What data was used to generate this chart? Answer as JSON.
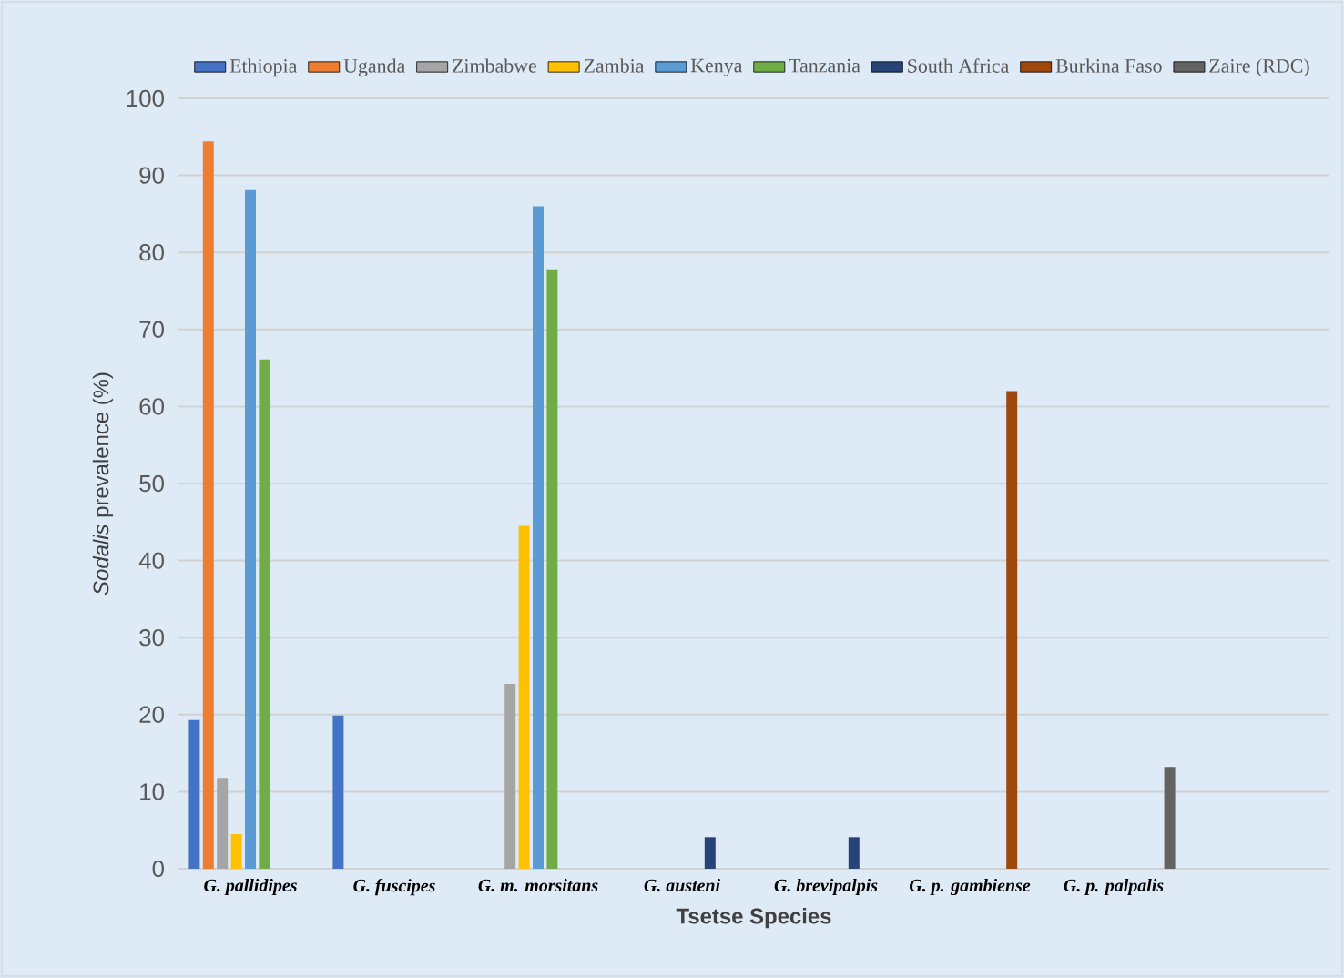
{
  "chart_data": {
    "type": "bar",
    "xlabel": "Tsetse Species",
    "ylabel": "*Sodalis* prevalence (%)",
    "categories": [
      "G. pallidipes",
      "G. fuscipes",
      "G. m. morsitans",
      "G. austeni",
      "G. brevipalpis",
      "G. p. gambiense",
      "G. p. palpalis",
      null
    ],
    "series": [
      {
        "name": "Ethiopia",
        "color": "#4472c4",
        "values": [
          19.3,
          19.9,
          null,
          null,
          null,
          null,
          null,
          null
        ]
      },
      {
        "name": "Uganda",
        "color": "#ed7d31",
        "values": [
          94.4,
          null,
          null,
          null,
          null,
          null,
          null,
          null
        ]
      },
      {
        "name": "Zimbabwe",
        "color": "#a5a5a5",
        "values": [
          11.8,
          null,
          24,
          null,
          null,
          null,
          null,
          null
        ]
      },
      {
        "name": "Zambia",
        "color": "#ffc000",
        "values": [
          4.5,
          null,
          44.5,
          null,
          null,
          null,
          null,
          null
        ]
      },
      {
        "name": "Kenya",
        "color": "#5b9bd5",
        "values": [
          88.1,
          null,
          86,
          null,
          null,
          null,
          null,
          null
        ]
      },
      {
        "name": "Tanzania",
        "color": "#70ad47",
        "values": [
          66.1,
          null,
          77.8,
          null,
          null,
          null,
          null,
          null
        ]
      },
      {
        "name": "South Africa",
        "color": "#264478",
        "values": [
          null,
          null,
          null,
          4.1,
          4.1,
          null,
          null,
          null
        ]
      },
      {
        "name": "Burkina Faso",
        "color": "#9e480e",
        "values": [
          null,
          null,
          null,
          null,
          null,
          62,
          null,
          null
        ]
      },
      {
        "name": "Zaire (RDC)",
        "color": "#636363",
        "values": [
          null,
          null,
          null,
          null,
          null,
          null,
          13.2,
          null
        ]
      }
    ],
    "ylim": [
      0,
      100
    ],
    "yticks": [
      0,
      10,
      20,
      30,
      40,
      50,
      60,
      70,
      80,
      90,
      100
    ],
    "grid": "y",
    "legend": "top"
  }
}
